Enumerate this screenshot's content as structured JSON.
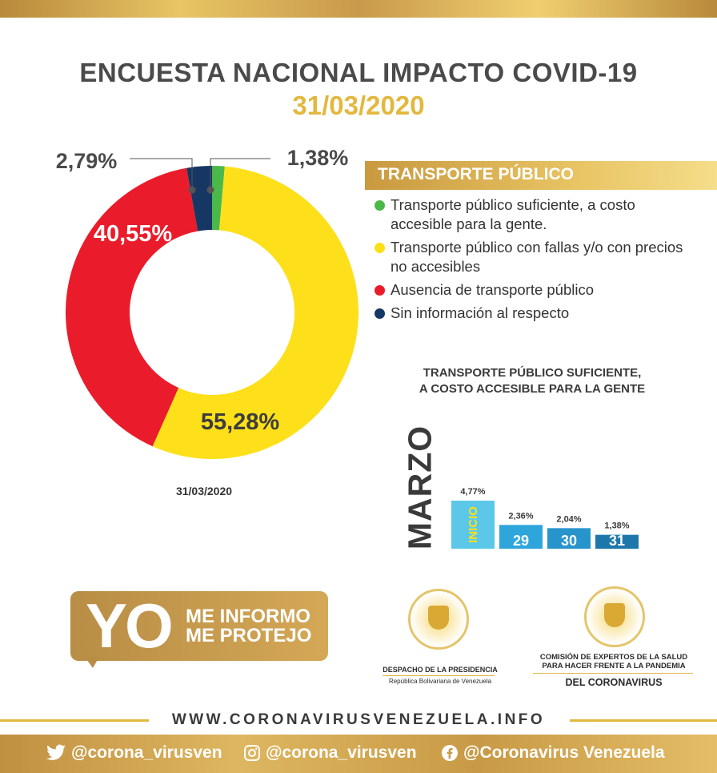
{
  "header": {
    "title": "ENCUESTA NACIONAL IMPACTO COVID-19",
    "date": "31/03/2020"
  },
  "chart_data": [
    {
      "type": "pie",
      "title": "",
      "caption": "31/03/2020",
      "labels": [
        "Transporte público suficiente, a costo accesible para la gente.",
        "Transporte público con fallas y/o con precios no accesibles",
        "Ausencia de transporte público",
        "Sin información al respecto"
      ],
      "values": [
        1.38,
        55.28,
        40.55,
        2.79
      ],
      "value_labels": [
        "1,38%",
        "55,28%",
        "40,55%",
        "2,79%"
      ],
      "colors": [
        "#4bb84a",
        "#fde01a",
        "#ea1c2b",
        "#163763"
      ],
      "legend_title": "TRANSPORTE PÚBLICO",
      "legend_position": "right"
    },
    {
      "type": "bar",
      "title": "TRANSPORTE PÚBLICO SUFICIENTE,\nA COSTO ACCESIBLE PARA LA GENTE",
      "side_label": "MARZO",
      "categories": [
        "INICIO",
        "29",
        "30",
        "31"
      ],
      "values": [
        4.77,
        2.36,
        2.04,
        1.38
      ],
      "value_labels": [
        "4,77%",
        "2,36%",
        "2,04%",
        "1,38%"
      ],
      "colors": [
        "#5bc8ea",
        "#2ea6dc",
        "#2894cc",
        "#1d77aa"
      ],
      "highlight_label_color": "#fde01a"
    }
  ],
  "campaign": {
    "yo": "YO",
    "line1": "ME INFORMO",
    "line2": "ME PROTEJO"
  },
  "institutions": {
    "left_name": "DESPACHO DE LA PRESIDENCIA",
    "left_sub": "República Bolivariana de Venezuela",
    "right_name": "COMISIÓN DE EXPERTOS DE LA SALUD PARA HACER FRENTE A LA PANDEMIA",
    "right_sub": "DEL CORONAVIRUS"
  },
  "website": "WWW.CORONAVIRUSVENEZUELA.INFO",
  "social": {
    "twitter": "@corona_virusven",
    "instagram": "@corona_virusven",
    "facebook": "@Coronavirus Venezuela"
  },
  "colors": {
    "gold": "#e2b83f",
    "dark_text": "#4a4a4a"
  }
}
